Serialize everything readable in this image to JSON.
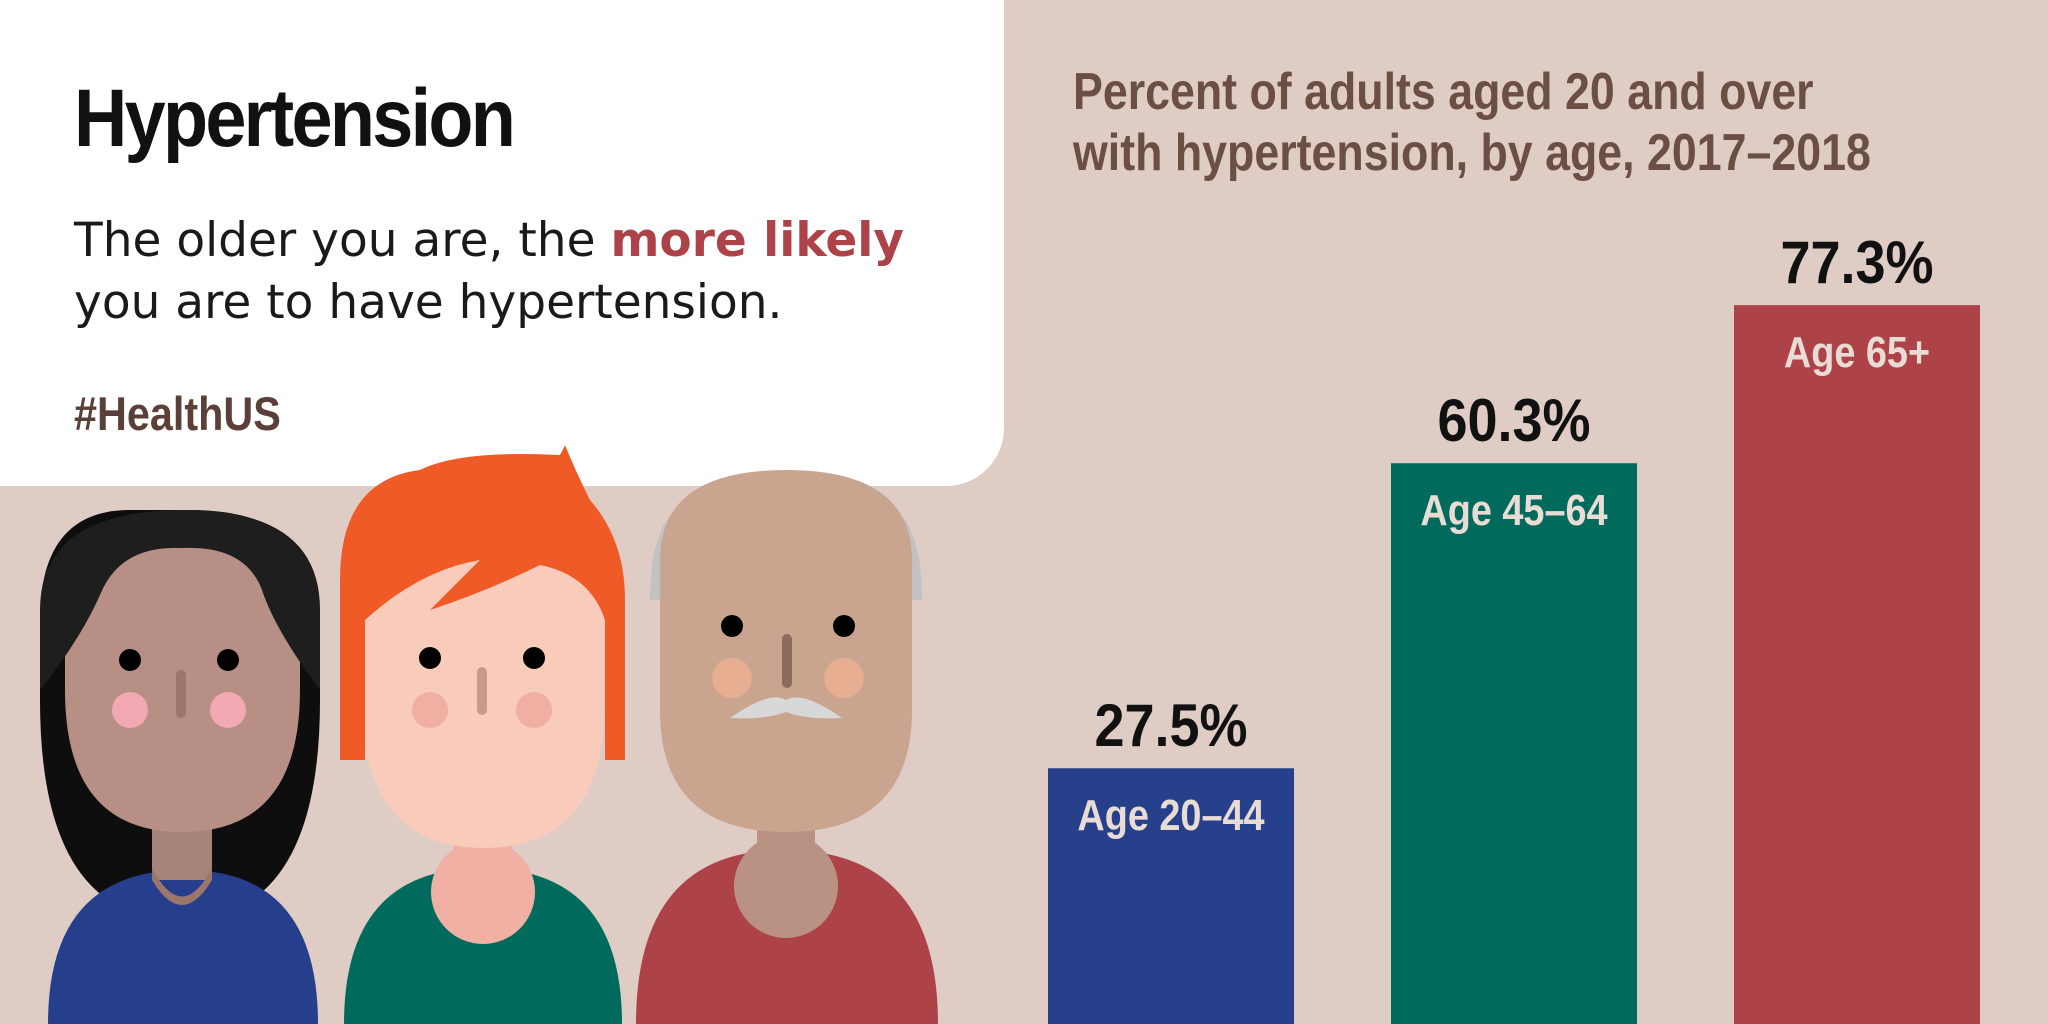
{
  "header": {
    "title": "Hypertension",
    "lead_before": "The older you are, the ",
    "lead_highlight": "more likely",
    "lead_after": " you are to have hypertension.",
    "hashtag": "#HealthUS"
  },
  "colors": {
    "background": "#dfcdc5",
    "panel": "#ffffff",
    "highlight": "#ad4349",
    "chart_title": "#6b4f45"
  },
  "chart_data": {
    "type": "bar",
    "title": "Percent of adults aged 20 and over with hypertension, by age, 2017–2018",
    "xlabel": "",
    "ylabel": "",
    "categories": [
      "Age 20–44",
      "Age 45–64",
      "Age 65+"
    ],
    "values": [
      27.5,
      60.3,
      77.3
    ],
    "value_labels": [
      "27.5%",
      "60.3%",
      "77.3%"
    ],
    "unit": "%",
    "ylim": [
      0,
      100
    ],
    "colors": [
      "#27408b",
      "#006b5c",
      "#ad4349"
    ],
    "grid": false,
    "legend": "none"
  }
}
